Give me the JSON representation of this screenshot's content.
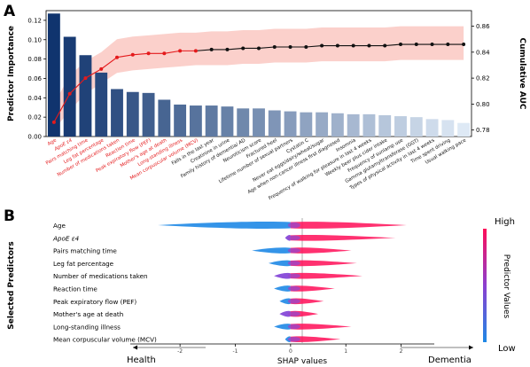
{
  "panel_a_letter": "A",
  "panel_b_letter": "B",
  "chart_data": [
    {
      "type": "bar",
      "panel": "A",
      "ylabel": "Predictor Importance",
      "y2label": "Cumulative AUC",
      "ylim": [
        0,
        0.13
      ],
      "yticks": [
        "0.00",
        "0.02",
        "0.04",
        "0.06",
        "0.08",
        "0.10",
        "0.12"
      ],
      "y2lim": [
        0.775,
        0.872
      ],
      "y2ticks": [
        "0.78",
        "0.80",
        "0.82",
        "0.84",
        "0.86"
      ],
      "categories": [
        "Age",
        "ApoE ε4",
        "Pairs matching time",
        "Leg fat percentage",
        "Number of medications taken",
        "Reaction time",
        "Peak expiratory flow (PEF)",
        "Mother's age at death",
        "Long-standing illness",
        "Mean corpuscular volume (MCV)",
        "Falls in the last year",
        "Creatinine in urine",
        "Family history of dementia/ AD",
        "Neuroticism score",
        "Fractured heel",
        "Lifetime number of sexual partners",
        "Cystatin C",
        "Never eat eggs/dairy/wheat/sugar",
        "Age when non-cancer illness first diagnosed",
        "Insomnia",
        "Frequency of walking for pleasure in last 4 weeks",
        "Weekly beer plus cider intake",
        "Frequency of sunlamp use",
        "Gamma glutamyltransferase (GGT)",
        "Types of physical activity in last 4 weeks",
        "Time spent driving",
        "Usual walking pace"
      ],
      "highlight_count": 10,
      "values": [
        0.127,
        0.103,
        0.084,
        0.066,
        0.049,
        0.046,
        0.045,
        0.038,
        0.033,
        0.032,
        0.032,
        0.031,
        0.029,
        0.029,
        0.027,
        0.026,
        0.025,
        0.025,
        0.024,
        0.023,
        0.023,
        0.022,
        0.021,
        0.02,
        0.018,
        0.017,
        0.014
      ],
      "series": [
        {
          "values": [
            0.786,
            0.808,
            0.82,
            0.827,
            0.836,
            0.838,
            0.839,
            0.839,
            0.841,
            0.841,
            0.842,
            0.842,
            0.843,
            0.843,
            0.844,
            0.844,
            0.844,
            0.845,
            0.845,
            0.845,
            0.845,
            0.845,
            0.846,
            0.846,
            0.846,
            0.846,
            0.846
          ]
        },
        {
          "values": [
            0.78,
            0.795,
            0.808,
            0.816,
            0.824,
            0.826,
            0.827,
            0.828,
            0.829,
            0.83,
            0.83,
            0.83,
            0.831,
            0.831,
            0.832,
            0.832,
            0.832,
            0.833,
            0.833,
            0.833,
            0.833,
            0.833,
            0.834,
            0.834,
            0.834,
            0.834,
            0.834
          ]
        },
        {
          "values": [
            0.8,
            0.822,
            0.833,
            0.84,
            0.85,
            0.852,
            0.853,
            0.854,
            0.855,
            0.855,
            0.856,
            0.856,
            0.857,
            0.857,
            0.858,
            0.858,
            0.858,
            0.859,
            0.859,
            0.859,
            0.859,
            0.859,
            0.86,
            0.86,
            0.86,
            0.86,
            0.86
          ]
        }
      ]
    },
    {
      "type": "scatter",
      "panel": "B",
      "ylabel": "Selected Predictors",
      "xlabel": "SHAP values",
      "xlim": [
        -2.9,
        2.6
      ],
      "xticks": [
        "-2",
        "-1",
        "0",
        "1",
        "2"
      ],
      "left_annotation": "Health",
      "right_annotation": "Dementia",
      "colorbar_label": "Predictor Values",
      "colorbar_high": "High",
      "colorbar_low": "Low",
      "colors": {
        "low": "#1e88e5",
        "high": "#ff0d57"
      },
      "categories": [
        "Age",
        "ApoE ε4",
        "Pairs matching time",
        "Leg fat percentage",
        "Number of medications taken",
        "Reaction time",
        "Peak expiratory flow (PEF)",
        "Mother's age at death",
        "Long-standing illness",
        "Mean corpuscular volume (MCV)"
      ],
      "ranges": [
        {
          "min": -2.4,
          "max": 2.1
        },
        {
          "min": -0.1,
          "max": 1.9
        },
        {
          "min": -0.7,
          "max": 1.1
        },
        {
          "min": -0.4,
          "max": 1.2
        },
        {
          "min": -0.3,
          "max": 1.3
        },
        {
          "min": -0.3,
          "max": 0.8
        },
        {
          "min": -0.2,
          "max": 0.6
        },
        {
          "min": -0.2,
          "max": 0.5
        },
        {
          "min": -0.3,
          "max": 1.1
        },
        {
          "min": -0.1,
          "max": 0.9
        }
      ]
    }
  ]
}
